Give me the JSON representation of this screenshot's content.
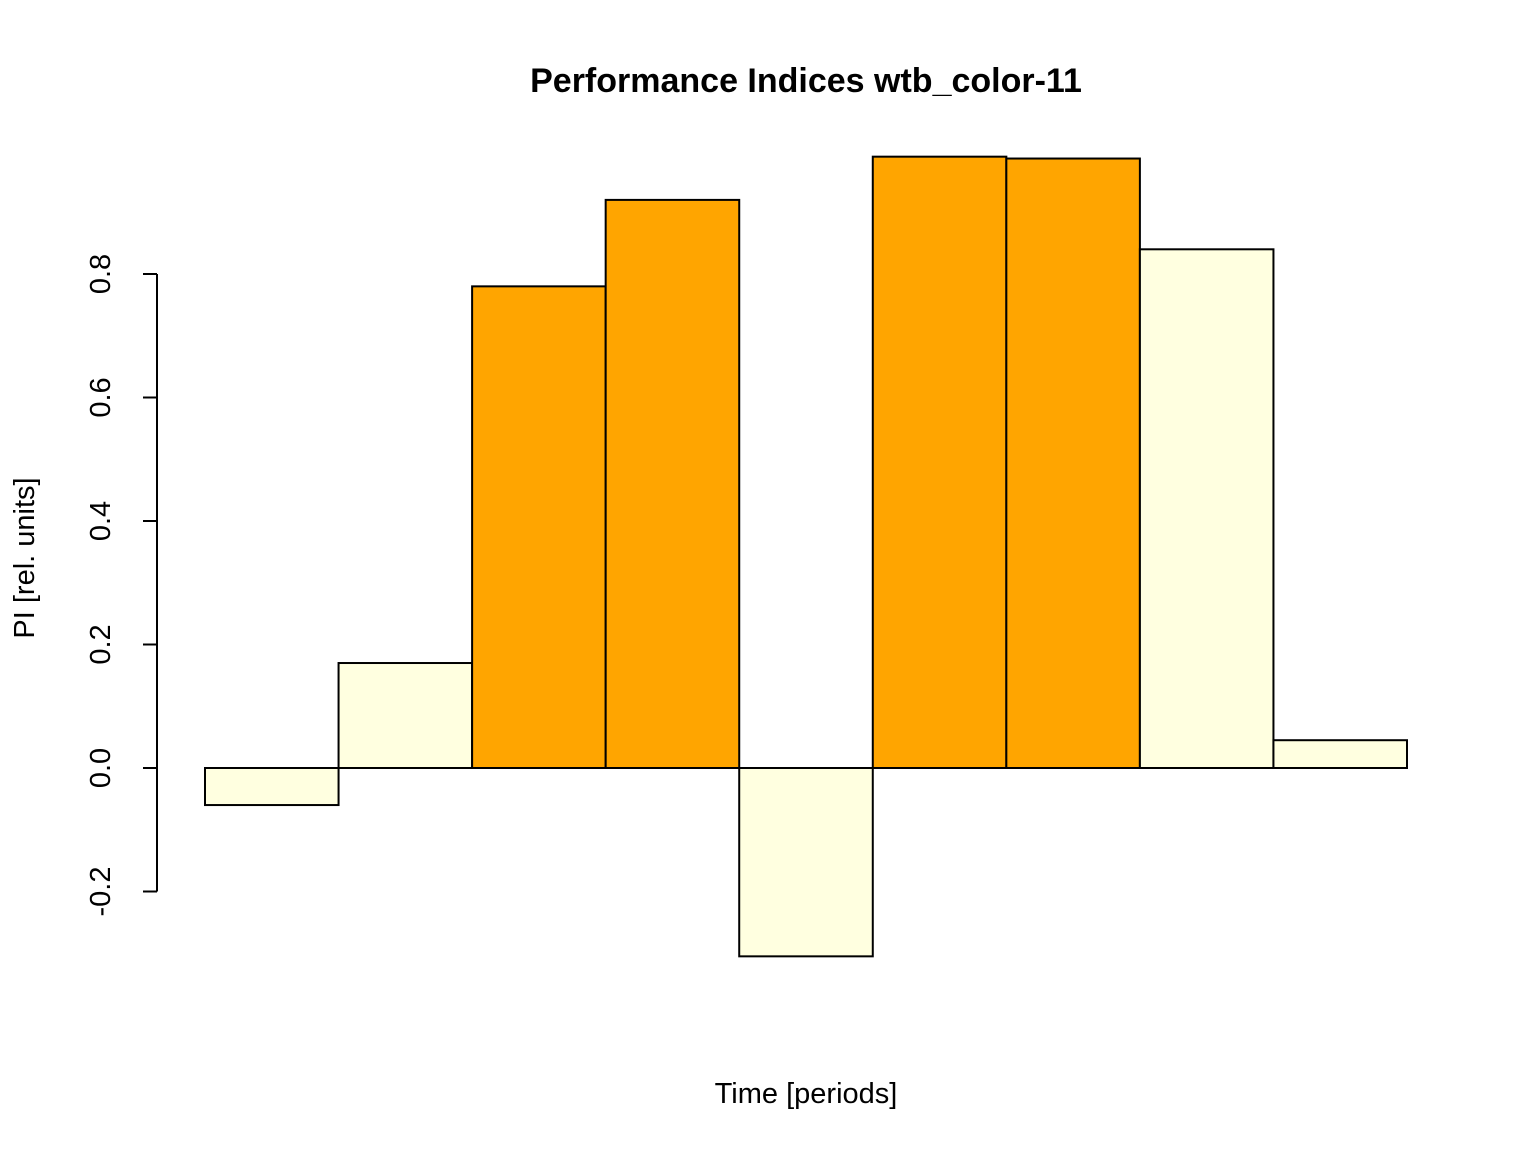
{
  "chart_data": {
    "type": "bar",
    "title": "Performance Indices wtb_color-11",
    "xlabel": "Time [periods]",
    "ylabel": "PI [rel. units]",
    "categories": [
      "",
      "",
      "",
      "",
      "",
      "",
      "",
      "",
      ""
    ],
    "values": [
      -0.06,
      0.17,
      0.78,
      0.92,
      -0.305,
      0.99,
      0.987,
      0.84,
      0.045
    ],
    "bar_colors": [
      "#FFFFE0",
      "#FFFFE0",
      "#FFA500",
      "#FFA500",
      "#FFFFE0",
      "#FFA500",
      "#FFA500",
      "#FFFFE0",
      "#FFFFE0"
    ],
    "ylim": [
      -0.3,
      1.0
    ],
    "yticks": [
      -0.2,
      0.0,
      0.2,
      0.4,
      0.6,
      0.8
    ],
    "ytick_labels": [
      "-0.2",
      "0.0",
      "0.2",
      "0.4",
      "0.6",
      "0.8"
    ],
    "grid": false,
    "legend": "none",
    "colors": {
      "highlight": "#FFA500",
      "base": "#FFFFE0",
      "outline": "#000000"
    }
  }
}
